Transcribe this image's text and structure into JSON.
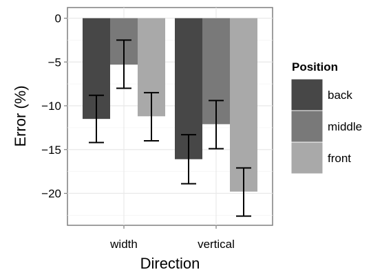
{
  "chart_data": {
    "type": "bar",
    "xlabel": "Direction",
    "ylabel": "Error (%)",
    "categories": [
      "width",
      "vertical"
    ],
    "ylim": [
      -23.5,
      1
    ],
    "yticks": [
      0,
      -5,
      -10,
      -15,
      -20
    ],
    "ytick_labels": [
      "0",
      "−5",
      "−10",
      "−15",
      "−20"
    ],
    "grid": true,
    "legend": {
      "title": "Position",
      "placement": "right"
    },
    "series": [
      {
        "name": "back",
        "color": "#474747",
        "values": [
          -11.5,
          -16.1
        ],
        "err_low": [
          -14.2,
          -18.9
        ],
        "err_high": [
          -8.8,
          -13.3
        ]
      },
      {
        "name": "middle",
        "color": "#797979",
        "values": [
          -5.3,
          -12.1
        ],
        "err_low": [
          -8.0,
          -14.9
        ],
        "err_high": [
          -2.5,
          -9.4
        ]
      },
      {
        "name": "front",
        "color": "#a9a9a9",
        "values": [
          -11.2,
          -19.8
        ],
        "err_low": [
          -14.0,
          -22.6
        ],
        "err_high": [
          -8.5,
          -17.1
        ]
      }
    ]
  }
}
